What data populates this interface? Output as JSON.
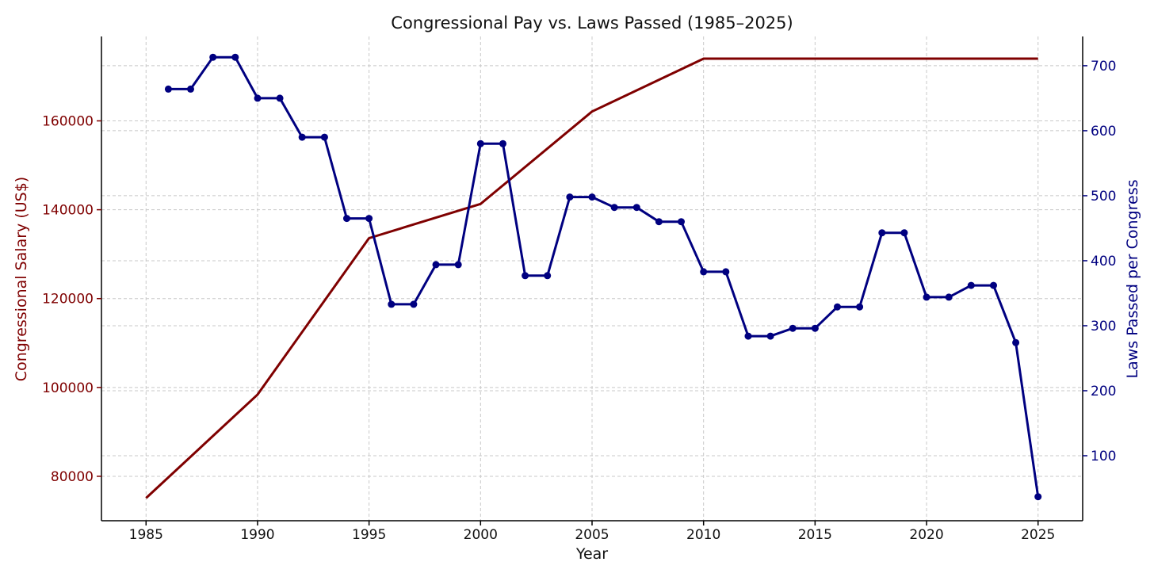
{
  "chart_data": {
    "type": "line",
    "title": "Congressional Pay vs. Laws Passed (1985–2025)",
    "xlabel": "Year",
    "ylabel_left": "Congressional Salary (US$)",
    "ylabel_right": "Laws Passed per Congress",
    "xlim": [
      1983,
      2027
    ],
    "ylim_left": [
      70000,
      179000
    ],
    "ylim_right": [
      0,
      745
    ],
    "xticks": [
      "1985",
      "1990",
      "1995",
      "2000",
      "2005",
      "2010",
      "2015",
      "2020",
      "2025"
    ],
    "yticks_left": [
      "80000",
      "100000",
      "120000",
      "140000",
      "160000"
    ],
    "yticks_right": [
      "100",
      "200",
      "300",
      "400",
      "500",
      "600",
      "700"
    ],
    "grid": true,
    "colors": {
      "salary": "#7f0000",
      "laws": "#000080"
    },
    "series": [
      {
        "axis": "left",
        "marker": "none",
        "x": [
          1985,
          1990,
          1995,
          2000,
          2005,
          2010,
          2025
        ],
        "values": [
          75100,
          98400,
          133600,
          141300,
          162100,
          174000,
          174000
        ]
      },
      {
        "axis": "right",
        "marker": "circle",
        "x": [
          1986,
          1987,
          1988,
          1989,
          1990,
          1991,
          1992,
          1993,
          1994,
          1995,
          1996,
          1997,
          1998,
          1999,
          2000,
          2001,
          2002,
          2003,
          2004,
          2005,
          2006,
          2007,
          2008,
          2009,
          2010,
          2011,
          2012,
          2013,
          2014,
          2015,
          2016,
          2017,
          2018,
          2019,
          2020,
          2021,
          2022,
          2023,
          2024,
          2025
        ],
        "values": [
          664,
          664,
          713,
          713,
          650,
          650,
          590,
          590,
          465,
          465,
          333,
          333,
          394,
          394,
          580,
          580,
          377,
          377,
          498,
          498,
          482,
          482,
          460,
          460,
          383,
          383,
          284,
          284,
          296,
          296,
          329,
          329,
          443,
          443,
          344,
          344,
          362,
          362,
          274,
          37
        ]
      }
    ]
  }
}
